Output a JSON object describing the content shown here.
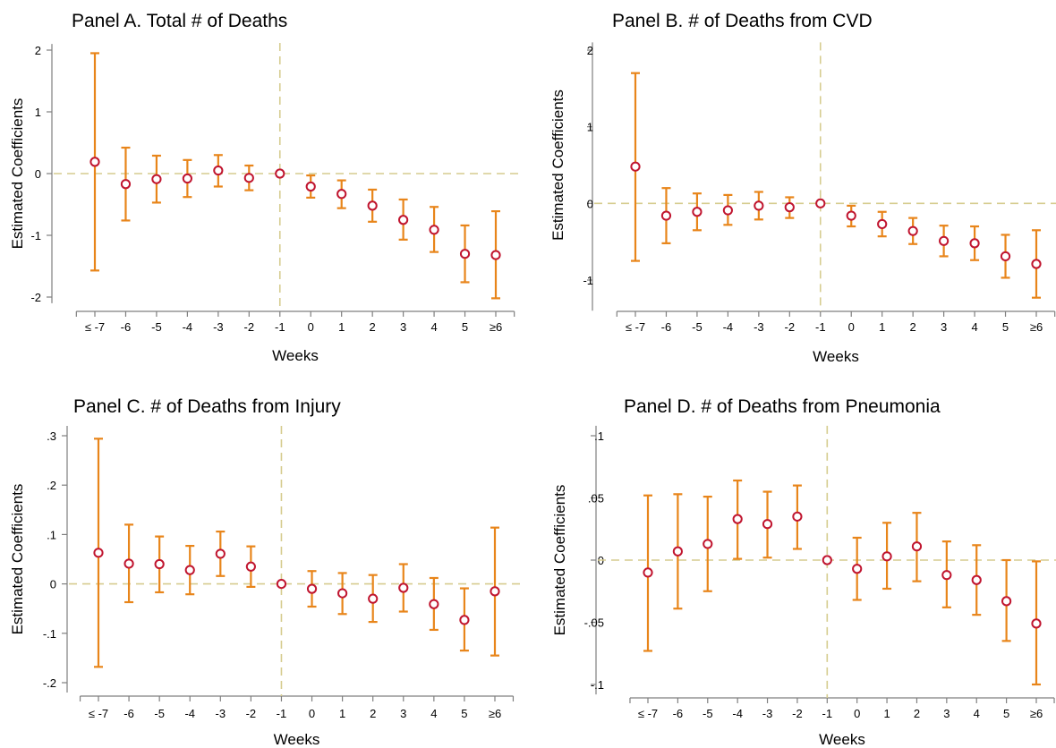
{
  "chart_data": [
    {
      "type": "scatter",
      "title": "Panel A. Total # of Deaths",
      "xlabel": "Weeks",
      "ylabel": "Estimated Coefficients",
      "categories": [
        "≤ -7",
        "-6",
        "-5",
        "-4",
        "-3",
        "-2",
        "-1",
        "0",
        "1",
        "2",
        "3",
        "4",
        "5",
        "≥6"
      ],
      "yticks": [
        2,
        1,
        0,
        -1,
        -2
      ],
      "ytick_labels": [
        "2",
        "1",
        "0",
        "-1",
        "-2"
      ],
      "ylim": [
        -2.1,
        2.1
      ],
      "hline": 0,
      "vline_category": "-1",
      "estimates": [
        0.19,
        -0.17,
        -0.09,
        -0.08,
        0.05,
        -0.07,
        0.0,
        -0.21,
        -0.33,
        -0.52,
        -0.75,
        -0.91,
        -1.3,
        -1.32
      ],
      "ci_low": [
        -1.57,
        -0.76,
        -0.47,
        -0.38,
        -0.21,
        -0.27,
        0.0,
        -0.39,
        -0.56,
        -0.78,
        -1.07,
        -1.27,
        -1.76,
        -2.02
      ],
      "ci_high": [
        1.95,
        0.42,
        0.29,
        0.22,
        0.3,
        0.13,
        0.0,
        -0.03,
        -0.11,
        -0.26,
        -0.42,
        -0.54,
        -0.84,
        -0.61
      ]
    },
    {
      "type": "scatter",
      "title": "Panel B. # of Deaths from CVD",
      "xlabel": "Weeks",
      "ylabel": "Estimated Coefficients",
      "categories": [
        "≤ -7",
        "-6",
        "-5",
        "-4",
        "-3",
        "-2",
        "-1",
        "0",
        "1",
        "2",
        "3",
        "4",
        "5",
        "≥6"
      ],
      "yticks": [
        2,
        1,
        0,
        -1
      ],
      "ytick_labels": [
        "2",
        "1",
        "0",
        "-1"
      ],
      "ylim": [
        -1.4,
        2.1
      ],
      "hline": 0,
      "vline_category": "-1",
      "estimates": [
        0.48,
        -0.16,
        -0.11,
        -0.09,
        -0.03,
        -0.05,
        0.0,
        -0.16,
        -0.27,
        -0.36,
        -0.49,
        -0.52,
        -0.69,
        -0.79
      ],
      "ci_low": [
        -0.75,
        -0.52,
        -0.35,
        -0.28,
        -0.21,
        -0.19,
        0.0,
        -0.3,
        -0.43,
        -0.53,
        -0.69,
        -0.74,
        -0.97,
        -1.23
      ],
      "ci_high": [
        1.7,
        0.2,
        0.13,
        0.11,
        0.15,
        0.08,
        0.0,
        -0.03,
        -0.11,
        -0.19,
        -0.29,
        -0.3,
        -0.41,
        -0.35
      ]
    },
    {
      "type": "scatter",
      "title": "Panel C. # of Deaths from Injury",
      "xlabel": "Weeks",
      "ylabel": "Estimated Coefficients",
      "categories": [
        "≤ -7",
        "-6",
        "-5",
        "-4",
        "-3",
        "-2",
        "-1",
        "0",
        "1",
        "2",
        "3",
        "4",
        "5",
        "≥6"
      ],
      "yticks": [
        0.3,
        0.2,
        0.1,
        0,
        -0.1,
        -0.2
      ],
      "ytick_labels": [
        ".3",
        ".2",
        ".1",
        "0",
        "-.1",
        "-.2"
      ],
      "ylim": [
        -0.22,
        0.32
      ],
      "hline": 0,
      "vline_category": "-1",
      "estimates": [
        0.063,
        0.041,
        0.04,
        0.028,
        0.061,
        0.035,
        0.0,
        -0.01,
        -0.019,
        -0.03,
        -0.008,
        -0.041,
        -0.073,
        -0.015
      ],
      "ci_low": [
        -0.168,
        -0.037,
        -0.017,
        -0.021,
        0.016,
        -0.006,
        0.0,
        -0.046,
        -0.061,
        -0.077,
        -0.056,
        -0.093,
        -0.135,
        -0.145
      ],
      "ci_high": [
        0.294,
        0.12,
        0.096,
        0.077,
        0.106,
        0.076,
        0.0,
        0.026,
        0.022,
        0.018,
        0.04,
        0.012,
        -0.009,
        0.114
      ]
    },
    {
      "type": "scatter",
      "title": "Panel D. # of Deaths from Pneumonia",
      "xlabel": "Weeks",
      "ylabel": "Estimated Coefficients",
      "categories": [
        "≤ -7",
        "-6",
        "-5",
        "-4",
        "-3",
        "-2",
        "-1",
        "0",
        "1",
        "2",
        "3",
        "4",
        "5",
        "≥6"
      ],
      "yticks": [
        0.1,
        0.05,
        0,
        -0.05,
        -0.1
      ],
      "ytick_labels": [
        ".1",
        ".05",
        "0",
        "-.05",
        "-.1"
      ],
      "ylim": [
        -0.108,
        0.108
      ],
      "hline": 0,
      "vline_category": "-1",
      "estimates": [
        -0.01,
        0.007,
        0.013,
        0.033,
        0.029,
        0.035,
        0.0,
        -0.007,
        0.003,
        0.011,
        -0.012,
        -0.016,
        -0.033,
        -0.051
      ],
      "ci_low": [
        -0.073,
        -0.039,
        -0.025,
        0.001,
        0.002,
        0.009,
        0.0,
        -0.032,
        -0.023,
        -0.017,
        -0.038,
        -0.044,
        -0.065,
        -0.1
      ],
      "ci_high": [
        0.052,
        0.053,
        0.051,
        0.064,
        0.055,
        0.06,
        0.0,
        0.018,
        0.03,
        0.038,
        0.015,
        0.012,
        0.0,
        -0.001
      ]
    }
  ]
}
